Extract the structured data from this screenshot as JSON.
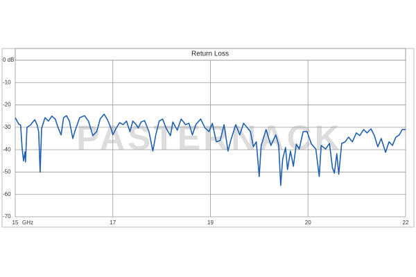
{
  "chart_data": {
    "type": "line",
    "title": "Return Loss",
    "x_label": "GHz",
    "watermark": "PASTERNACK",
    "x": [
      15.0,
      15.07,
      15.11,
      15.14,
      15.17,
      15.2,
      15.21,
      15.24,
      15.31,
      15.4,
      15.45,
      15.48,
      15.51,
      15.54,
      15.61,
      15.68,
      15.75,
      15.82,
      15.88,
      15.94,
      15.99,
      16.05,
      16.11,
      16.18,
      16.22,
      16.32,
      16.42,
      16.5,
      16.59,
      16.67,
      16.74,
      16.82,
      16.89,
      16.96,
      17.0,
      17.07,
      17.14,
      17.21,
      17.28,
      17.35,
      17.41,
      17.48,
      17.52,
      17.58,
      17.65,
      17.74,
      17.82,
      17.88,
      17.95,
      18.02,
      18.09,
      18.18,
      18.23,
      18.32,
      18.4,
      18.49,
      18.56,
      18.63,
      18.7,
      18.8,
      18.89,
      18.97,
      19.02,
      19.06,
      19.1,
      19.14,
      19.18,
      19.21,
      19.26,
      19.3,
      19.34,
      19.38,
      19.41,
      19.44,
      19.47,
      19.5,
      19.52,
      19.57,
      19.62,
      19.67,
      19.7,
      19.72,
      19.74,
      19.77,
      19.79,
      19.82,
      19.85,
      19.88,
      19.91,
      19.95,
      19.99,
      20.07,
      20.16,
      20.23,
      20.27,
      20.36,
      20.44,
      20.5,
      20.54,
      20.59,
      20.63,
      20.69,
      20.76,
      20.83,
      20.91,
      20.99,
      21.06,
      21.14,
      21.21,
      21.29,
      21.36,
      21.43,
      21.5,
      21.59,
      21.66,
      21.73,
      21.8,
      21.87,
      21.93,
      22.0
    ],
    "series": [
      {
        "name": "Return Loss",
        "color": "#1f5fad",
        "values": [
          -25.7,
          -28.5,
          -29,
          -39,
          -45,
          -41,
          -45.5,
          -30,
          -29,
          -26.6,
          -29,
          -32,
          -50,
          -30.5,
          -25.7,
          -27.2,
          -25,
          -26.3,
          -30.3,
          -33.4,
          -25.7,
          -24.8,
          -27.2,
          -35,
          -31.9,
          -25.7,
          -24.8,
          -27.2,
          -33.7,
          -31.9,
          -26.3,
          -24.1,
          -26.6,
          -30.3,
          -33.4,
          -30.3,
          -27.9,
          -28.8,
          -27.2,
          -31.9,
          -27.2,
          -28.8,
          -30.3,
          -27.6,
          -27,
          -31.9,
          -40.6,
          -33.4,
          -27.2,
          -26.3,
          -30.3,
          -33.7,
          -27.6,
          -31.3,
          -26.3,
          -28.8,
          -28.2,
          -33.4,
          -28.8,
          -26.3,
          -30.3,
          -31.9,
          -28.2,
          -36.5,
          -35.9,
          -28.8,
          -40.6,
          -35.6,
          -28.8,
          -33.4,
          -28.2,
          -30.3,
          -31.9,
          -38.7,
          -36.5,
          -52,
          -38.1,
          -31,
          -38.1,
          -33.4,
          -38.1,
          -56,
          -44.3,
          -39,
          -48.9,
          -40.6,
          -47.4,
          -37.5,
          -39.7,
          -31.9,
          -31.9,
          -37.5,
          -39.7,
          -52,
          -38.1,
          -39.7,
          -37.2,
          -48,
          -50.5,
          -41.8,
          -51,
          -37.2,
          -36.5,
          -34.4,
          -36.5,
          -32.5,
          -33.7,
          -31,
          -32.5,
          -30.7,
          -33.7,
          -38.7,
          -35,
          -41.2,
          -36.5,
          -38.1,
          -34.4,
          -33.4,
          -31,
          -31
        ]
      }
    ],
    "xlim": [
      15,
      22
    ],
    "xticks": [
      15,
      17,
      19,
      20,
      22
    ],
    "ylim": [
      -70,
      0
    ],
    "yticks": [
      {
        "value": 0,
        "label": "0 dB"
      },
      -10,
      -20,
      -30,
      -40,
      -50,
      -60,
      -70
    ],
    "grid": true
  }
}
